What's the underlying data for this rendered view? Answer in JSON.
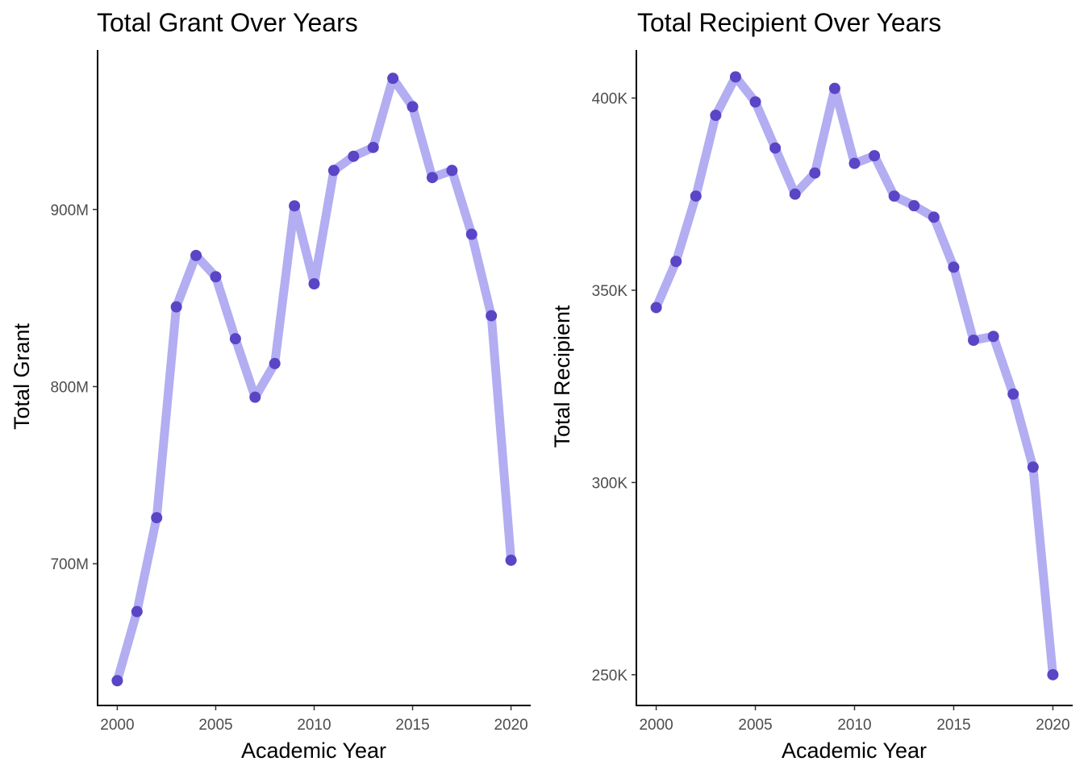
{
  "colors": {
    "line": "#b3adf2",
    "point": "#5a45c6",
    "axis": "#000000",
    "tick_text": "#4d4d4d"
  },
  "chart_data": [
    {
      "type": "line",
      "title": "Total Grant Over Years",
      "xlabel": "Academic Year",
      "ylabel": "Total Grant",
      "xlim": [
        1999,
        2021
      ],
      "ylim": [
        620,
        990
      ],
      "x_ticks": [
        2000,
        2005,
        2010,
        2015,
        2020
      ],
      "x_tick_labels": [
        "2000",
        "2005",
        "2010",
        "2015",
        "2020"
      ],
      "y_ticks": [
        700,
        800,
        900
      ],
      "y_tick_labels": [
        "700M",
        "800M",
        "900M"
      ],
      "y_unit": "M",
      "grid": false,
      "legend": "none",
      "x": [
        2000,
        2001,
        2002,
        2003,
        2004,
        2005,
        2006,
        2007,
        2008,
        2009,
        2010,
        2011,
        2012,
        2013,
        2014,
        2015,
        2016,
        2017,
        2018,
        2019,
        2020
      ],
      "values": [
        634,
        673,
        726,
        845,
        874,
        862,
        827,
        794,
        813,
        902,
        858,
        922,
        930,
        935,
        974,
        958,
        918,
        922,
        886,
        840,
        702
      ]
    },
    {
      "type": "line",
      "title": "Total Recipient Over Years",
      "xlabel": "Academic Year",
      "ylabel": "Total Recipient",
      "xlim": [
        1999,
        2021
      ],
      "ylim": [
        242,
        412.5
      ],
      "x_ticks": [
        2000,
        2005,
        2010,
        2015,
        2020
      ],
      "x_tick_labels": [
        "2000",
        "2005",
        "2010",
        "2015",
        "2020"
      ],
      "y_ticks": [
        250,
        300,
        350,
        400
      ],
      "y_tick_labels": [
        "250K",
        "300K",
        "350K",
        "400K"
      ],
      "y_unit": "K",
      "grid": false,
      "legend": "none",
      "x": [
        2000,
        2001,
        2002,
        2003,
        2004,
        2005,
        2006,
        2007,
        2008,
        2009,
        2010,
        2011,
        2012,
        2013,
        2014,
        2015,
        2016,
        2017,
        2018,
        2019,
        2020
      ],
      "values": [
        345.5,
        357.5,
        374.5,
        395.5,
        405.5,
        399,
        387,
        375,
        380.5,
        402.5,
        383,
        385,
        374.5,
        372,
        369,
        356,
        337,
        338,
        323,
        304,
        250
      ]
    }
  ]
}
